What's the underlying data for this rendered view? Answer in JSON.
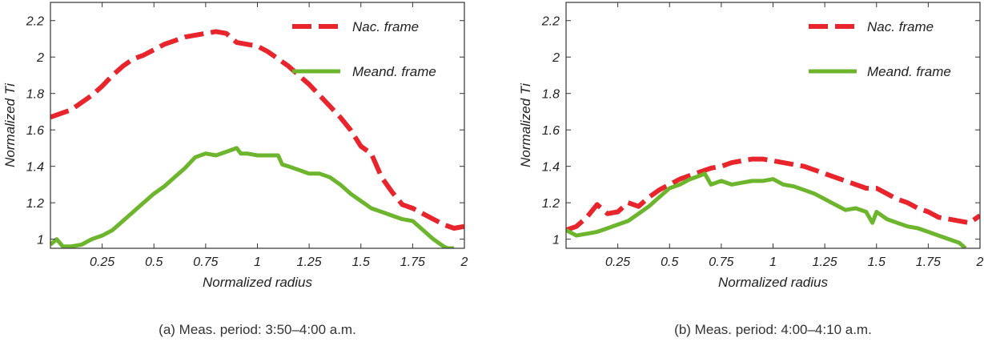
{
  "chart_data": [
    {
      "type": "line",
      "xlabel": "Normalized radius",
      "ylabel": "Normalized Ti",
      "xlim": [
        0,
        2
      ],
      "ylim": [
        0.95,
        2.3
      ],
      "xticks": [
        0.25,
        0.5,
        0.75,
        1,
        1.25,
        1.5,
        1.75,
        2
      ],
      "xtick_labels": [
        "0.25",
        "0.5",
        "0.75",
        "1",
        "1.25",
        "1.5",
        "1.75",
        "2"
      ],
      "yticks": [
        1,
        1.2,
        1.4,
        1.6,
        1.8,
        2,
        2.2
      ],
      "ytick_labels": [
        "1",
        "1.2",
        "1.4",
        "1.6",
        "1.8",
        "2",
        "2.2"
      ],
      "grid": false,
      "legend_position": "top-right",
      "caption": "(a) Meas. period: 3:50–4:00 a.m.",
      "series": [
        {
          "name": "Nac. frame",
          "color": "#e8252d",
          "style": "dashed",
          "x": [
            0,
            0.05,
            0.1,
            0.15,
            0.2,
            0.25,
            0.3,
            0.35,
            0.4,
            0.45,
            0.5,
            0.55,
            0.6,
            0.65,
            0.7,
            0.75,
            0.8,
            0.85,
            0.9,
            0.95,
            1.0,
            1.05,
            1.1,
            1.15,
            1.2,
            1.25,
            1.3,
            1.35,
            1.4,
            1.45,
            1.5,
            1.55,
            1.6,
            1.65,
            1.7,
            1.75,
            1.8,
            1.85,
            1.9,
            1.95,
            2.0
          ],
          "y": [
            1.67,
            1.69,
            1.71,
            1.75,
            1.79,
            1.84,
            1.9,
            1.95,
            1.99,
            2.01,
            2.04,
            2.07,
            2.09,
            2.11,
            2.12,
            2.13,
            2.14,
            2.13,
            2.08,
            2.07,
            2.06,
            2.03,
            1.99,
            1.95,
            1.9,
            1.85,
            1.79,
            1.73,
            1.67,
            1.6,
            1.51,
            1.47,
            1.34,
            1.26,
            1.19,
            1.17,
            1.14,
            1.11,
            1.08,
            1.06,
            1.07
          ]
        },
        {
          "name": "Meand. frame",
          "color": "#6cb52d",
          "style": "solid",
          "x": [
            0,
            0.03,
            0.06,
            0.1,
            0.15,
            0.2,
            0.25,
            0.3,
            0.35,
            0.4,
            0.45,
            0.5,
            0.55,
            0.6,
            0.65,
            0.7,
            0.75,
            0.8,
            0.85,
            0.9,
            0.92,
            0.95,
            1.0,
            1.05,
            1.1,
            1.12,
            1.15,
            1.2,
            1.25,
            1.3,
            1.35,
            1.4,
            1.45,
            1.5,
            1.55,
            1.6,
            1.65,
            1.7,
            1.75,
            1.8,
            1.85,
            1.9,
            1.92,
            1.95
          ],
          "y": [
            0.97,
            1.0,
            0.96,
            0.96,
            0.97,
            1.0,
            1.02,
            1.05,
            1.1,
            1.15,
            1.2,
            1.25,
            1.29,
            1.34,
            1.39,
            1.45,
            1.47,
            1.46,
            1.48,
            1.5,
            1.47,
            1.47,
            1.46,
            1.46,
            1.46,
            1.41,
            1.4,
            1.38,
            1.36,
            1.36,
            1.34,
            1.3,
            1.25,
            1.21,
            1.17,
            1.15,
            1.13,
            1.11,
            1.1,
            1.05,
            1.0,
            0.96,
            0.95,
            0.95
          ]
        }
      ]
    },
    {
      "type": "line",
      "xlabel": "Normalized radius",
      "ylabel": "Normalized Ti",
      "xlim": [
        0,
        2
      ],
      "ylim": [
        0.95,
        2.3
      ],
      "xticks": [
        0.25,
        0.5,
        0.75,
        1,
        1.25,
        1.5,
        1.75,
        2
      ],
      "xtick_labels": [
        "0.25",
        "0.5",
        "0.75",
        "1",
        "1.25",
        "1.5",
        "1.75",
        "2"
      ],
      "yticks": [
        1,
        1.2,
        1.4,
        1.6,
        1.8,
        2,
        2.2
      ],
      "ytick_labels": [
        "1",
        "1.2",
        "1.4",
        "1.6",
        "1.8",
        "2",
        "2.2"
      ],
      "grid": false,
      "legend_position": "top-right",
      "caption": "(b) Meas. period: 4:00–4:10 a.m.",
      "series": [
        {
          "name": "Nac. frame",
          "color": "#e8252d",
          "style": "dashed",
          "x": [
            0,
            0.05,
            0.1,
            0.15,
            0.2,
            0.25,
            0.3,
            0.35,
            0.4,
            0.45,
            0.5,
            0.55,
            0.6,
            0.65,
            0.7,
            0.75,
            0.8,
            0.85,
            0.9,
            0.95,
            1.0,
            1.05,
            1.1,
            1.15,
            1.2,
            1.25,
            1.3,
            1.35,
            1.4,
            1.45,
            1.5,
            1.55,
            1.6,
            1.65,
            1.7,
            1.75,
            1.8,
            1.85,
            1.9,
            1.95,
            2.0
          ],
          "y": [
            1.05,
            1.07,
            1.12,
            1.19,
            1.14,
            1.15,
            1.2,
            1.18,
            1.23,
            1.27,
            1.3,
            1.33,
            1.35,
            1.37,
            1.39,
            1.4,
            1.42,
            1.43,
            1.44,
            1.44,
            1.43,
            1.42,
            1.41,
            1.4,
            1.38,
            1.36,
            1.34,
            1.32,
            1.3,
            1.28,
            1.28,
            1.25,
            1.22,
            1.2,
            1.17,
            1.15,
            1.12,
            1.11,
            1.1,
            1.09,
            1.13
          ]
        },
        {
          "name": "Meand. frame",
          "color": "#6cb52d",
          "style": "solid",
          "x": [
            0,
            0.05,
            0.1,
            0.15,
            0.2,
            0.25,
            0.3,
            0.35,
            0.4,
            0.45,
            0.5,
            0.55,
            0.6,
            0.65,
            0.67,
            0.7,
            0.75,
            0.8,
            0.85,
            0.9,
            0.95,
            1.0,
            1.05,
            1.1,
            1.15,
            1.2,
            1.25,
            1.3,
            1.35,
            1.4,
            1.45,
            1.48,
            1.5,
            1.55,
            1.6,
            1.65,
            1.7,
            1.75,
            1.8,
            1.85,
            1.9,
            1.93
          ],
          "y": [
            1.05,
            1.02,
            1.03,
            1.04,
            1.06,
            1.08,
            1.1,
            1.14,
            1.18,
            1.23,
            1.28,
            1.3,
            1.33,
            1.35,
            1.36,
            1.3,
            1.32,
            1.3,
            1.31,
            1.32,
            1.32,
            1.33,
            1.3,
            1.29,
            1.27,
            1.25,
            1.22,
            1.19,
            1.16,
            1.17,
            1.15,
            1.09,
            1.15,
            1.11,
            1.09,
            1.07,
            1.06,
            1.04,
            1.02,
            1.0,
            0.98,
            0.95
          ]
        }
      ]
    }
  ]
}
